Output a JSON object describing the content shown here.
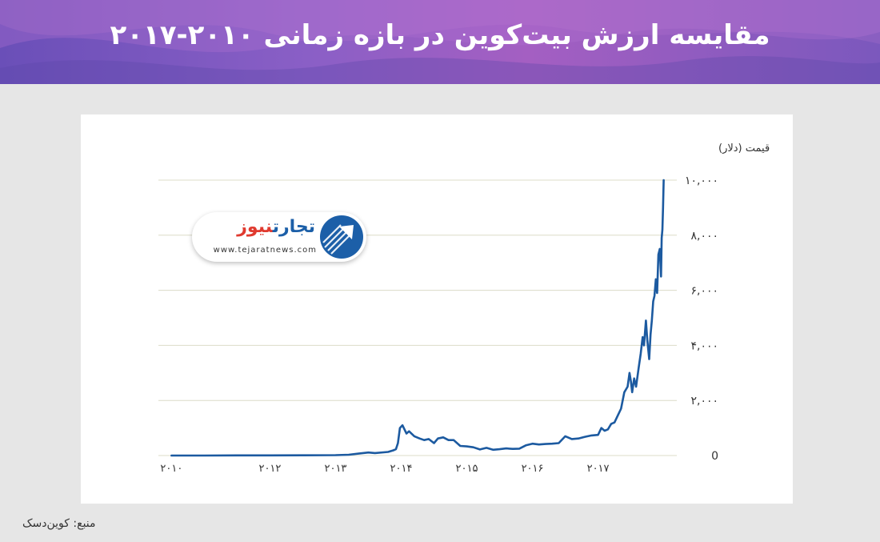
{
  "header": {
    "title": "مقایسه ارزش بیت‌کوین در بازه زمانی ۲۰۱۰-۲۰۱۷"
  },
  "source_note": "منبع: کوین‌دسک",
  "logo": {
    "name_part1": "تجارت",
    "name_part2": "نیوز",
    "url": "www.tejaratnews.com"
  },
  "colors": {
    "line": "#1c5aa0",
    "grid": "#dcdcc8",
    "banner_start": "#6a4fb8",
    "banner_end": "#a45fc2",
    "logo_blue": "#1c5fa8",
    "logo_red": "#e03a2f"
  },
  "chart_data": {
    "type": "line",
    "title": "",
    "ylabel": "قیمت (دلار)",
    "xlabel": "",
    "ylim": [
      0,
      10000
    ],
    "yticks": [
      {
        "value": 0,
        "label": "0"
      },
      {
        "value": 2000,
        "label": "۲,۰۰۰"
      },
      {
        "value": 4000,
        "label": "۴,۰۰۰"
      },
      {
        "value": 6000,
        "label": "۶,۰۰۰"
      },
      {
        "value": 8000,
        "label": "۸,۰۰۰"
      },
      {
        "value": 10000,
        "label": "۱۰,۰۰۰"
      }
    ],
    "xticks": [
      {
        "value": 2010.5,
        "label": "۲۰۱۰"
      },
      {
        "value": 2012.0,
        "label": "۲۰۱۲"
      },
      {
        "value": 2013.0,
        "label": "۲۰۱۳"
      },
      {
        "value": 2014.0,
        "label": "۲۰۱۴"
      },
      {
        "value": 2015.0,
        "label": "۲۰۱۵"
      },
      {
        "value": 2016.0,
        "label": "۲۰۱۶"
      },
      {
        "value": 2017.0,
        "label": "۲۰۱۷"
      }
    ],
    "xlim": [
      2010.3,
      2018.2
    ],
    "grid": true,
    "legend": "none",
    "series": [
      {
        "x": [
          2010.5,
          2011.0,
          2011.5,
          2012.0,
          2012.5,
          2013.0,
          2013.2,
          2013.35,
          2013.5,
          2013.6,
          2013.8,
          2013.88,
          2013.92,
          2013.95,
          2013.98,
          2014.02,
          2014.08,
          2014.12,
          2014.2,
          2014.28,
          2014.35,
          2014.42,
          2014.5,
          2014.56,
          2014.64,
          2014.72,
          2014.8,
          2014.9,
          2015.0,
          2015.1,
          2015.2,
          2015.3,
          2015.4,
          2015.5,
          2015.6,
          2015.7,
          2015.8,
          2015.9,
          2016.0,
          2016.1,
          2016.2,
          2016.3,
          2016.4,
          2016.5,
          2016.6,
          2016.7,
          2016.8,
          2016.9,
          2017.0,
          2017.05,
          2017.1,
          2017.15,
          2017.2,
          2017.25,
          2017.3,
          2017.35,
          2017.4,
          2017.45,
          2017.48,
          2017.5,
          2017.52,
          2017.55,
          2017.58,
          2017.62,
          2017.65,
          2017.68,
          2017.7,
          2017.73,
          2017.75,
          2017.78,
          2017.8,
          2017.82,
          2017.84,
          2017.86,
          2017.88,
          2017.9,
          2017.92,
          2017.94,
          2017.96,
          2017.97,
          2017.98,
          2017.99,
          2018.0
        ],
        "y": [
          0,
          0,
          5,
          5,
          8,
          15,
          30,
          70,
          110,
          90,
          130,
          190,
          230,
          450,
          1000,
          1100,
          800,
          880,
          700,
          620,
          560,
          600,
          450,
          620,
          660,
          560,
          560,
          350,
          330,
          300,
          220,
          280,
          210,
          230,
          260,
          240,
          250,
          370,
          430,
          400,
          420,
          430,
          450,
          700,
          600,
          620,
          680,
          730,
          750,
          1000,
          900,
          950,
          1150,
          1200,
          1450,
          1700,
          2300,
          2500,
          3000,
          2700,
          2300,
          2800,
          2500,
          3200,
          3700,
          4300,
          4000,
          4900,
          4200,
          3500,
          4400,
          4900,
          5600,
          5800,
          6400,
          5900,
          7300,
          7500,
          6500,
          7900,
          8200,
          9000,
          10000
        ]
      }
    ]
  }
}
